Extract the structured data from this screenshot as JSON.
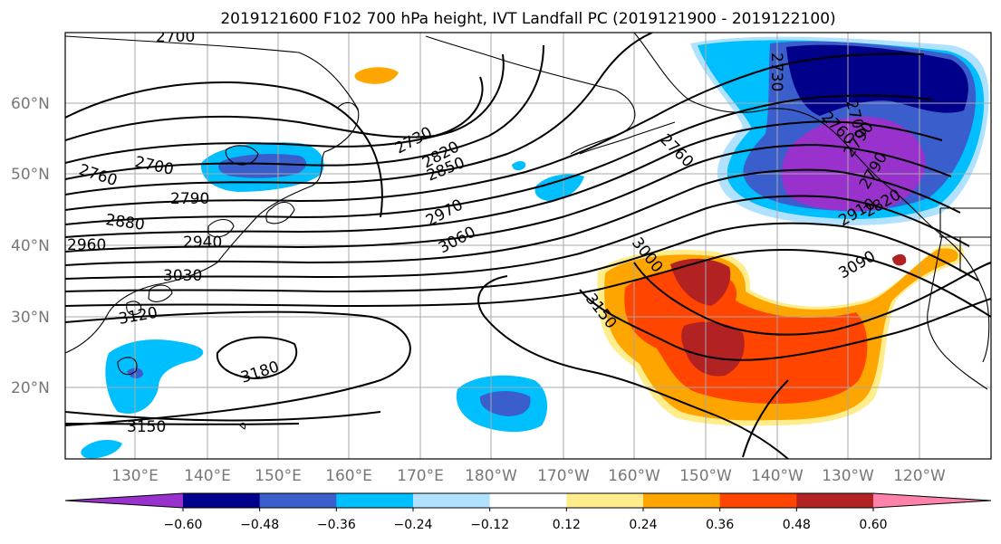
{
  "title": "2019121600 F102 700 hPa height, IVT Landfall PC (2019121900 - 2019122100)",
  "lat_labels": [
    "60°N",
    "50°N",
    "40°N",
    "30°N",
    "20°N"
  ],
  "lon_labels": [
    "130°E",
    "140°E",
    "150°E",
    "160°E",
    "170°E",
    "180°W",
    "170°W",
    "160°W",
    "150°W",
    "140°W",
    "130°W",
    "120°W"
  ],
  "colorbar": {
    "colors": [
      "#9932cc",
      "#00008b",
      "#3a5fcd",
      "#00bfff",
      "#b0e2ff",
      "#ffffff",
      "#ffec8b",
      "#ffa500",
      "#ff4500",
      "#b22222",
      "#ff82ab"
    ],
    "labels": [
      "−0.60",
      "−0.48",
      "−0.36",
      "−0.24",
      "−0.12",
      "0.12",
      "0.24",
      "0.36",
      "0.48",
      "0.60"
    ]
  },
  "contour_labels": [
    "2700",
    "2700",
    "2760",
    "2790",
    "2880",
    "2940",
    "3030",
    "3120",
    "3150",
    "3180",
    "2730",
    "2820",
    "2850",
    "2970",
    "3060",
    "3000",
    "3150",
    "3090",
    "2760",
    "2910",
    "2730",
    "2790",
    "2760",
    "2700",
    "2790",
    "2820",
    "2960"
  ],
  "colors": {
    "coast": "#000000",
    "grid": "#a8a8a8",
    "tick_label": "#777777"
  }
}
